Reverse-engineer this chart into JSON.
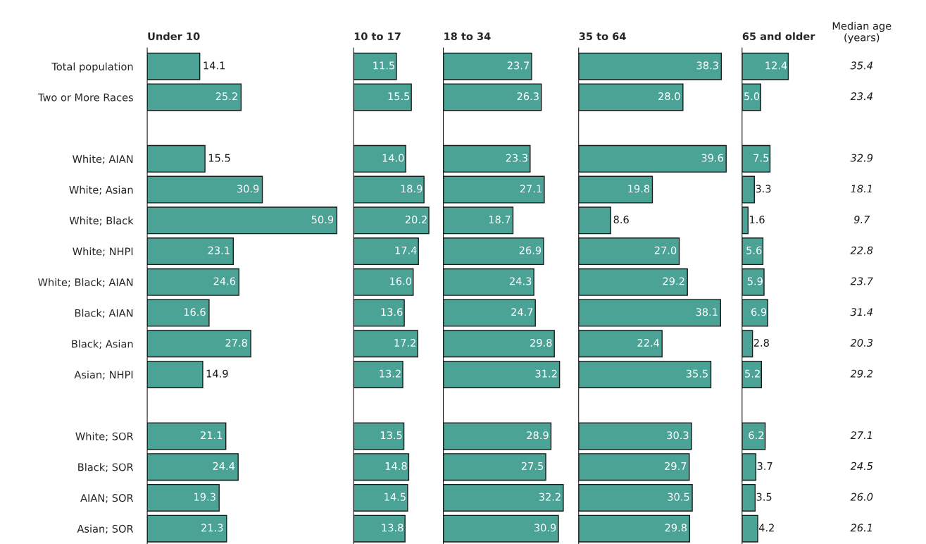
{
  "chart_data": [
    {
      "type": "bar",
      "orientation": "horizontal",
      "title": "Under 10",
      "color": "#4ba396",
      "tick_labels": "y",
      "categories": [
        "Total population",
        "Two or More Races",
        null,
        "White; AIAN",
        "White; Asian",
        "White; Black",
        "White; NHPI",
        "White; Black; AIAN",
        "Black; AIAN",
        "Black; Asian",
        "Asian; NHPI",
        null,
        "White; SOR",
        "Black; SOR",
        "AIAN; SOR",
        "Asian; SOR"
      ],
      "values": [
        14.1,
        25.2,
        null,
        15.5,
        30.9,
        50.9,
        23.1,
        24.6,
        16.6,
        27.8,
        14.9,
        null,
        21.1,
        24.4,
        19.3,
        21.3
      ],
      "value_labels": [
        "14.1",
        "25.2",
        null,
        "15.5",
        "30.9",
        "50.9",
        "23.1",
        "24.6",
        "16.6",
        "27.8",
        "14.9",
        null,
        "21.1",
        "24.4",
        "19.3",
        "21.3"
      ]
    },
    {
      "type": "bar",
      "orientation": "horizontal",
      "title": "10 to 17",
      "color": "#4ba396",
      "tick_labels": false,
      "categories": [
        null,
        null,
        null,
        null,
        null,
        null,
        null,
        null,
        null,
        null,
        null,
        null,
        null,
        null,
        null,
        null
      ],
      "values": [
        11.5,
        15.5,
        null,
        14.0,
        18.9,
        20.2,
        17.4,
        16.0,
        13.6,
        17.2,
        13.2,
        null,
        13.5,
        14.8,
        14.5,
        13.8
      ],
      "value_labels": [
        "11.5",
        "15.5",
        null,
        "14.0",
        "18.9",
        "20.2",
        "17.4",
        "16.0",
        "13.6",
        "17.2",
        "13.2",
        null,
        "13.5",
        "14.8",
        "14.5",
        "13.8"
      ]
    },
    {
      "type": "bar",
      "orientation": "horizontal",
      "title": "18 to 34",
      "color": "#4ba396",
      "tick_labels": false,
      "categories": [
        null,
        null,
        null,
        null,
        null,
        null,
        null,
        null,
        null,
        null,
        null,
        null,
        null,
        null,
        null,
        null
      ],
      "values": [
        23.7,
        26.3,
        null,
        23.3,
        27.1,
        18.7,
        26.9,
        24.3,
        24.7,
        29.8,
        31.2,
        null,
        28.9,
        27.5,
        32.2,
        30.9
      ],
      "value_labels": [
        "23.7",
        "26.3",
        null,
        "23.3",
        "27.1",
        "18.7",
        "26.9",
        "24.3",
        "24.7",
        "29.8",
        "31.2",
        null,
        "28.9",
        "27.5",
        "32.2",
        "30.9"
      ]
    },
    {
      "type": "bar",
      "orientation": "horizontal",
      "title": "35 to 64",
      "color": "#4ba396",
      "tick_labels": false,
      "categories": [
        null,
        null,
        null,
        null,
        null,
        null,
        null,
        null,
        null,
        null,
        null,
        null,
        null,
        null,
        null,
        null
      ],
      "values": [
        38.3,
        28.0,
        null,
        39.6,
        19.8,
        8.6,
        27.0,
        29.2,
        38.1,
        22.4,
        35.5,
        null,
        30.3,
        29.7,
        30.5,
        29.8
      ],
      "value_labels": [
        "38.3",
        "28.0",
        null,
        "39.6",
        "19.8",
        "8.6",
        "27.0",
        "29.2",
        "38.1",
        "22.4",
        "35.5",
        null,
        "30.3",
        "29.7",
        "30.5",
        "29.8"
      ]
    },
    {
      "type": "bar",
      "orientation": "horizontal",
      "title": "65 and older",
      "color": "#4ba396",
      "tick_labels": false,
      "categories": [
        null,
        null,
        null,
        null,
        null,
        null,
        null,
        null,
        null,
        null,
        null,
        null,
        null,
        null,
        null,
        null
      ],
      "values": [
        12.4,
        5.0,
        null,
        7.5,
        3.3,
        1.6,
        5.6,
        5.9,
        6.9,
        2.8,
        5.2,
        null,
        6.2,
        3.7,
        3.5,
        4.2
      ],
      "value_labels": [
        "12.4",
        "5.0",
        null,
        "7.5",
        "3.3",
        "1.6",
        "5.6",
        "5.9",
        "6.9",
        "2.8",
        "5.2",
        null,
        "6.2",
        "3.7",
        "3.5",
        "4.2"
      ]
    },
    {
      "type": "other",
      "title": "Median age\n(years)",
      "annotations": [
        "35.4",
        "23.4",
        "32.9",
        "18.1",
        "9.7",
        "22.8",
        "23.7",
        "31.4",
        "20.3",
        "29.2",
        "27.1",
        "24.5",
        "26.0",
        "26.1"
      ]
    }
  ]
}
